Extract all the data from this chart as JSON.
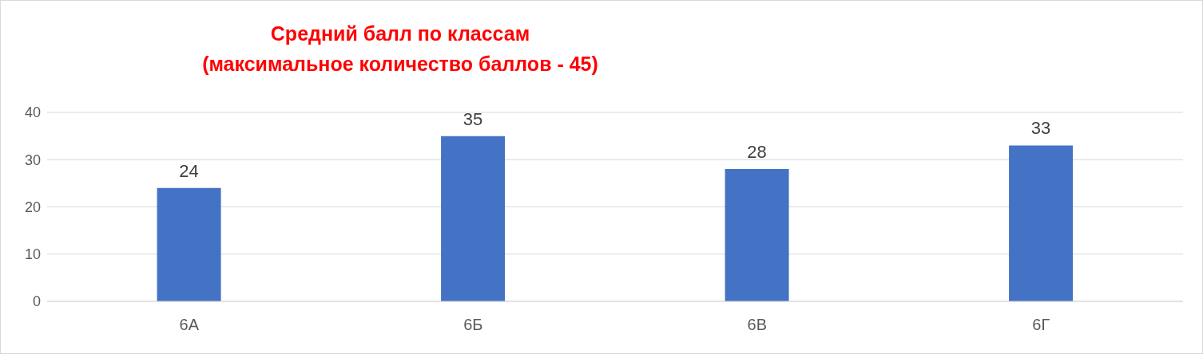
{
  "chart_data": {
    "type": "bar",
    "title": "Средний балл по классам\n(максимальное количество баллов - 45)",
    "categories": [
      "6А",
      "6Б",
      "6В",
      "6Г"
    ],
    "values": [
      24,
      35,
      28,
      33
    ],
    "color": "#4472c4",
    "ylim": [
      0,
      40
    ],
    "yticks": [
      0,
      10,
      20,
      30,
      40
    ],
    "grid": "y",
    "data_labels": true
  }
}
